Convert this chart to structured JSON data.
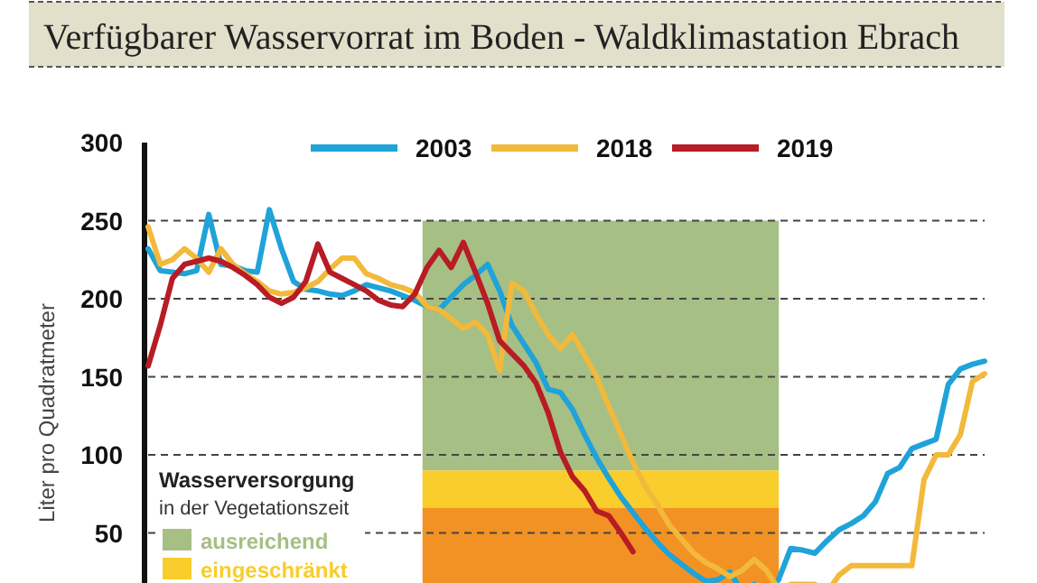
{
  "chart_data": {
    "type": "line",
    "title": "Verfügbarer Wasservorrat im Boden - Waldklimastation Ebrach",
    "ylabel": "Liter pro Quadratmeter",
    "legend_title": "Wasserversorgung",
    "annotations": [
      "in der Vegetationszeit"
    ],
    "categories": [
      null,
      null,
      null,
      null,
      null,
      null,
      null,
      null,
      null,
      null,
      null,
      null,
      null,
      null,
      null,
      null,
      null,
      null,
      null,
      null,
      null,
      null,
      null,
      null,
      null,
      null,
      null,
      null,
      null,
      null,
      null,
      null,
      null,
      null,
      null,
      null,
      null,
      null,
      null,
      null,
      null,
      null,
      null,
      null,
      null,
      null,
      null,
      null,
      null,
      null,
      null,
      null,
      null,
      null,
      null,
      null,
      null,
      null,
      null,
      null,
      null,
      null,
      null,
      null,
      null,
      null,
      null,
      null,
      null,
      null
    ],
    "ylim": [
      0,
      300
    ],
    "yticks": [
      50,
      100,
      150,
      200,
      250,
      300
    ],
    "tick_labels": "y",
    "grid": "y",
    "legend": "top",
    "line_style": "solid",
    "marker": "none",
    "bands": [
      {
        "axis": "y",
        "from": 90,
        "to": 250,
        "label": "ausreichend",
        "color": "#a6bf85"
      },
      {
        "axis": "y",
        "from": 66,
        "to": 90,
        "label": "eingeschränkt",
        "color": "#f8cd2c"
      },
      {
        "axis": "y",
        "from": 0,
        "to": 66,
        "color": "#f39224"
      }
    ],
    "series": [
      {
        "name": "2003",
        "color": "#1fa3d8",
        "values": [
          232,
          218,
          217,
          216,
          218,
          254,
          222,
          221,
          218,
          217,
          257,
          232,
          211,
          206,
          205,
          203,
          202,
          205,
          209,
          207,
          205,
          202,
          199,
          195,
          193,
          201,
          209,
          215,
          222,
          205,
          183,
          171,
          159,
          142,
          140,
          129,
          113,
          98,
          85,
          73,
          63,
          53,
          44,
          36,
          30,
          24,
          19,
          20,
          25,
          12,
          17,
          12,
          20,
          40,
          39,
          37,
          45,
          52,
          56,
          61,
          70,
          88,
          92,
          104,
          107,
          110,
          145,
          155,
          158,
          160
        ]
      },
      {
        "name": "2018",
        "color": "#f2b93b",
        "values": [
          246,
          222,
          225,
          232,
          226,
          217,
          232,
          222,
          216,
          211,
          205,
          203,
          204,
          207,
          211,
          219,
          226,
          226,
          216,
          213,
          209,
          207,
          204,
          195,
          193,
          187,
          181,
          185,
          177,
          154,
          210,
          205,
          190,
          177,
          168,
          177,
          164,
          150,
          131,
          113,
          95,
          80,
          68,
          55,
          46,
          37,
          31,
          27,
          22,
          26,
          33,
          26,
          14,
          17,
          17,
          17,
          12,
          23,
          29,
          29,
          29,
          29,
          29,
          29,
          84,
          100,
          100,
          113,
          147,
          152
        ]
      },
      {
        "name": "2019",
        "color": "#b81c24",
        "values": [
          157,
          183,
          213,
          222,
          224,
          226,
          224,
          220,
          215,
          209,
          201,
          197,
          201,
          211,
          235,
          217,
          213,
          209,
          205,
          199,
          196,
          195,
          203,
          220,
          231,
          220,
          236,
          217,
          197,
          173,
          165,
          157,
          146,
          127,
          102,
          86,
          77,
          64,
          61,
          50,
          38,
          null,
          null,
          null,
          null,
          null,
          null,
          null,
          null,
          null,
          null,
          null,
          null,
          null,
          null,
          null,
          null,
          null,
          null,
          null,
          null,
          null,
          null,
          null,
          null,
          null,
          null,
          null,
          null,
          null
        ]
      }
    ]
  }
}
